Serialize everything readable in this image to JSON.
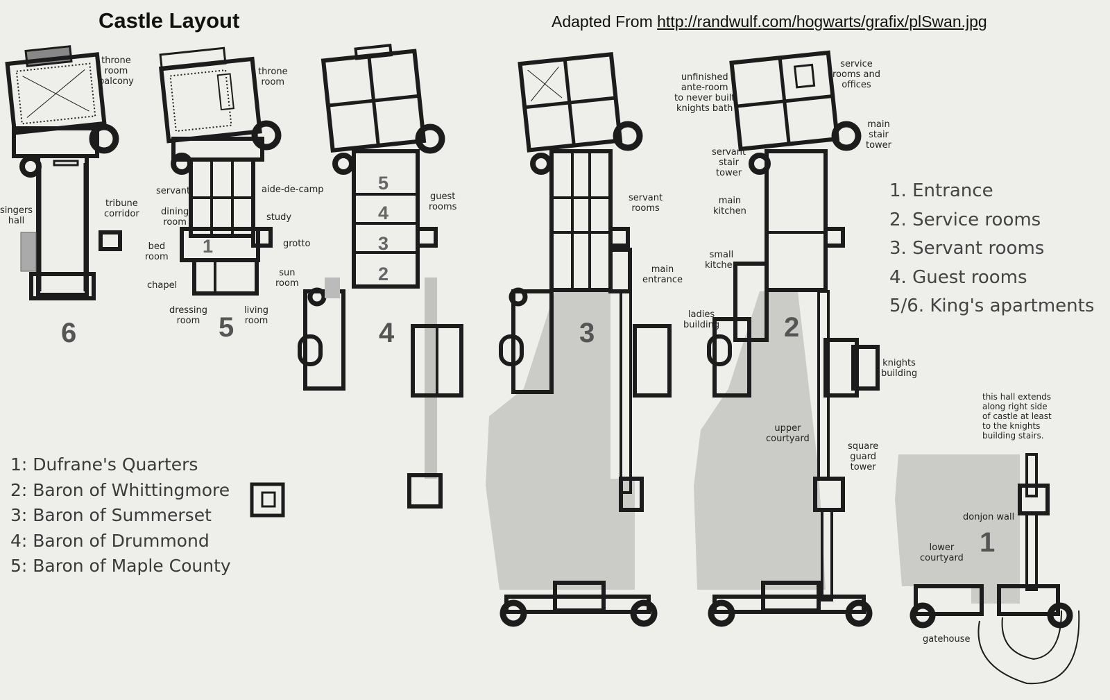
{
  "header": {
    "title": "Castle Layout",
    "source_prefix": "Adapted From ",
    "source_url": "http://randwulf.com/hogwarts/grafix/plSwan.jpg"
  },
  "stages": [
    "6",
    "5",
    "4",
    "3",
    "2",
    "1"
  ],
  "room_numbers": [
    "1",
    "5",
    "4",
    "3",
    "2"
  ],
  "labels": {
    "throne_room_balcony": "throne\nroom\nbalcony",
    "singers_hall": "singers\nhall",
    "tribune_corridor": "tribune\ncorridor",
    "throne_room": "throne\nroom",
    "servant": "servant",
    "aide_de_camp": "aide-de-camp",
    "dining_room": "dining\nroom",
    "study": "study",
    "bed_room": "bed\nroom",
    "grotto": "grotto",
    "chapel": "chapel",
    "sun_room": "sun\nroom",
    "dressing_room": "dressing\nroom",
    "living_room": "living\nroom",
    "guest_rooms": "guest\nrooms",
    "servant_rooms": "servant\nrooms",
    "main_entrance": "main\nentrance",
    "unfinished_ante_room": "unfinished\nante-room\nto never built\nknights bath",
    "service_rooms_offices": "service\nrooms and\noffices",
    "main_stair_tower": "main\nstair\ntower",
    "servant_stair_tower": "servant\nstair\ntower",
    "main_kitchen": "main\nkitchen",
    "small_kitchen": "small\nkitchen",
    "ladies_building": "ladies\nbuilding",
    "knights_building": "knights\nbuilding",
    "upper_courtyard": "upper\ncourtyard",
    "square_guard_tower": "square\nguard\ntower",
    "hall_note": "this hall extends\nalong right side\nof castle at least\nto the knights\nbuilding stairs.",
    "donjon_wall": "donjon wall",
    "lower_courtyard": "lower\ncourtyard",
    "gatehouse": "gatehouse"
  },
  "legend_right": [
    "1. Entrance",
    "2. Service rooms",
    "3. Servant rooms",
    "4. Guest rooms",
    "5/6. King's apartments"
  ],
  "legend_left": [
    "1: Dufrane's Quarters",
    "2: Baron of Whittingmore",
    "3: Baron of Summerset",
    "4: Baron of Drummond",
    "5: Baron of Maple County"
  ],
  "colors": {
    "paper": "#eeeeea",
    "wall": "#1c1c1c",
    "courtyard": "#c9c9c5",
    "ink": "#1a1a1a",
    "number_grey": "#555555"
  }
}
